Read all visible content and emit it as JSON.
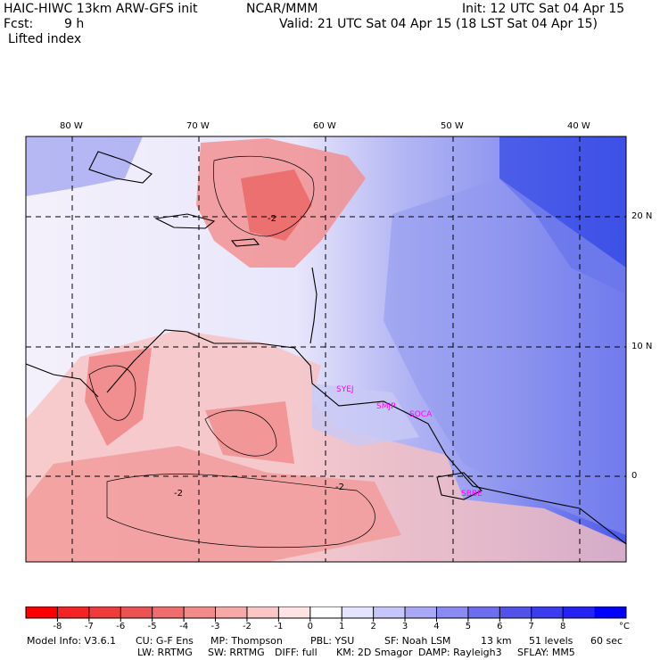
{
  "header": {
    "title_left": "HAIC-HIWC 13km ARW-GFS init",
    "title_org": "NCAR/MMM",
    "init": "Init: 12 UTC Sat 04 Apr 15",
    "fcst_label": "Fcst:",
    "fcst_value": "9 h",
    "valid": "Valid: 21 UTC Sat 04 Apr 15 (18 LST Sat 04 Apr 15)",
    "field": "Lifted index"
  },
  "map": {
    "lon_labels": [
      "80 W",
      "70 W",
      "60 W",
      "50 W",
      "40 W"
    ],
    "lat_labels": [
      "20 N",
      "10 N",
      "0"
    ],
    "contour_labels": [
      "-2",
      "-2",
      "-2"
    ],
    "station_labels": [
      "SYEJ",
      "SMJP",
      "SOCA",
      "SBBE"
    ],
    "station_color": "#ff00ff"
  },
  "colorbar": {
    "ticks": [
      "-8",
      "-7",
      "-6",
      "-5",
      "-4",
      "-3",
      "-2",
      "-1",
      "0",
      "1",
      "2",
      "3",
      "4",
      "5",
      "6",
      "7",
      "8"
    ],
    "unit": "°C",
    "colors": [
      "#ff0000",
      "#f52323",
      "#f03b3b",
      "#eb5252",
      "#ef6d6d",
      "#f38a8a",
      "#f7a8a8",
      "#fbc6c6",
      "#ffe4e4",
      "#ffffff",
      "#e4e4ff",
      "#c6c6fb",
      "#a8a8f7",
      "#8a8af3",
      "#6d6def",
      "#5252eb",
      "#3b3bf0",
      "#2323f5",
      "#0000ff"
    ]
  },
  "footer": {
    "line1": [
      "Model Info: V3.6.1",
      "CU: G-F Ens",
      "MP: Thompson",
      "PBL: YSU",
      "SF: Noah LSM",
      "13 km",
      "51 levels",
      "60 sec"
    ],
    "line2": [
      "LW: RRTMG",
      "SW: RRTMG",
      "DIFF: full",
      "KM: 2D Smagor",
      "DAMP: Rayleigh3",
      "SFLAY: MM5"
    ]
  }
}
